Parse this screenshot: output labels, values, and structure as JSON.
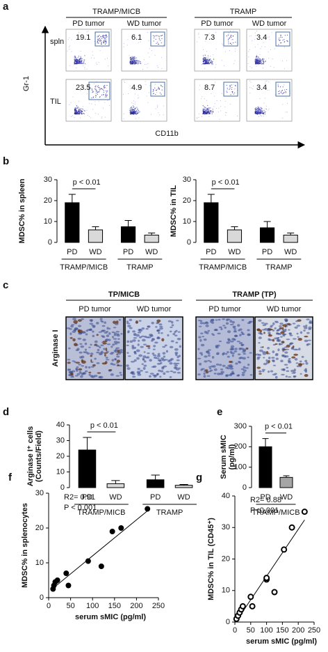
{
  "panel_labels": [
    "a",
    "b",
    "c",
    "d",
    "e",
    "f",
    "g"
  ],
  "flow": {
    "groups": [
      "TRAMP/MICB",
      "TRAMP"
    ],
    "columns": [
      "PD tumor",
      "WD tumor",
      "PD tumor",
      "WD tumor"
    ],
    "rows": [
      {
        "label": "spln",
        "values": [
          19.1,
          6.1,
          7.3,
          3.4
        ]
      },
      {
        "label": "TIL",
        "values": [
          23.5,
          4.9,
          8.7,
          3.4
        ]
      }
    ],
    "y_axis": "Gr-1",
    "x_axis": "CD11b"
  },
  "histology": {
    "groups": [
      "TP/MICB",
      "TRAMP (TP)"
    ],
    "columns": [
      "PD tumor",
      "WD tumor",
      "PD tumor",
      "WD tumor"
    ],
    "row_label": "Arginase I"
  },
  "chart_data": [
    {
      "type": "bar",
      "y_label": [
        "MDSC% in spleen"
      ],
      "categories": [
        "PD",
        "WD",
        "PD",
        "WD"
      ],
      "groups": [
        "TRAMP/MICB",
        "TRAMP"
      ],
      "values": [
        19,
        6,
        7.5,
        3.5
      ],
      "errors": [
        4,
        1.5,
        3,
        1
      ],
      "colors": [
        "#000000",
        "#d9d9d9",
        "#000000",
        "#d9d9d9"
      ],
      "ylim": [
        0,
        30
      ],
      "yticks": [
        0,
        10,
        20,
        30
      ],
      "annotations": [
        "p < 0.01"
      ]
    },
    {
      "type": "bar",
      "y_label": [
        "MDSC% in TIL"
      ],
      "categories": [
        "PD",
        "WD",
        "PD",
        "WD"
      ],
      "groups": [
        "TRAMP/MICB",
        "TRAMP"
      ],
      "values": [
        19,
        6,
        7,
        3.5
      ],
      "errors": [
        4,
        1.5,
        3,
        1
      ],
      "colors": [
        "#000000",
        "#d9d9d9",
        "#000000",
        "#d9d9d9"
      ],
      "ylim": [
        0,
        30
      ],
      "yticks": [
        0,
        10,
        20,
        30
      ],
      "annotations": [
        "p < 0.01"
      ]
    },
    {
      "type": "bar",
      "y_label": [
        "Arginase I⁺ cells",
        "(Counts/Field)"
      ],
      "categories": [
        "PD",
        "WD",
        "PD",
        "WD"
      ],
      "groups": [
        "TRAMP/MICB",
        "TRAMP"
      ],
      "values": [
        24,
        2.5,
        5,
        1.5
      ],
      "errors": [
        8,
        2,
        3,
        0.5
      ],
      "colors": [
        "#000000",
        "#d9d9d9",
        "#000000",
        "#d9d9d9"
      ],
      "ylim": [
        0,
        40
      ],
      "yticks": [
        0,
        10,
        20,
        30,
        40
      ],
      "annotations": [
        "p < 0.01"
      ]
    },
    {
      "type": "bar",
      "y_label": [
        "Serum sMIC",
        "(pg/ml)"
      ],
      "categories": [
        "PD",
        "WD"
      ],
      "groups": [
        "TRAMP/MICB"
      ],
      "values": [
        200,
        50
      ],
      "errors": [
        40,
        8
      ],
      "colors": [
        "#000000",
        "#a6a6a6"
      ],
      "ylim": [
        0,
        300
      ],
      "yticks": [
        0,
        100,
        200,
        300
      ],
      "annotations": [
        "p < 0.01"
      ]
    },
    {
      "type": "scatter",
      "y_label": [
        "MDSC% in splenocytes"
      ],
      "x_label": "serum sMIC (pg/ml)",
      "marker": "filled",
      "x": [
        10,
        12,
        15,
        20,
        40,
        45,
        90,
        120,
        145,
        165,
        225
      ],
      "values": [
        2.5,
        3.5,
        4.5,
        5,
        7,
        3.5,
        10.5,
        9,
        19,
        20,
        25.5
      ],
      "xlim": [
        0,
        250
      ],
      "xticks": [
        0,
        50,
        100,
        150,
        200,
        250
      ],
      "ylim": [
        0,
        30
      ],
      "yticks": [
        0,
        10,
        20,
        30
      ],
      "annotations": [
        "R2= 0.91",
        "P < 0.001"
      ]
    },
    {
      "type": "scatter",
      "y_label": [
        "MDSC% in TIL (CD45⁺)"
      ],
      "x_label": "serum sMIC (pg/ml)",
      "marker": "open",
      "x": [
        5,
        10,
        15,
        20,
        25,
        50,
        55,
        100,
        100,
        125,
        155,
        180,
        220
      ],
      "values": [
        1,
        2,
        3,
        4,
        5,
        8,
        5,
        13.5,
        14,
        9.5,
        23,
        30,
        35
      ],
      "xlim": [
        0,
        250
      ],
      "xticks": [
        0,
        50,
        100,
        150,
        200,
        250
      ],
      "ylim": [
        0,
        40
      ],
      "yticks": [
        0,
        10,
        20,
        30,
        40
      ],
      "annotations": [
        "R2= 0.88",
        "P<0.001"
      ]
    }
  ]
}
